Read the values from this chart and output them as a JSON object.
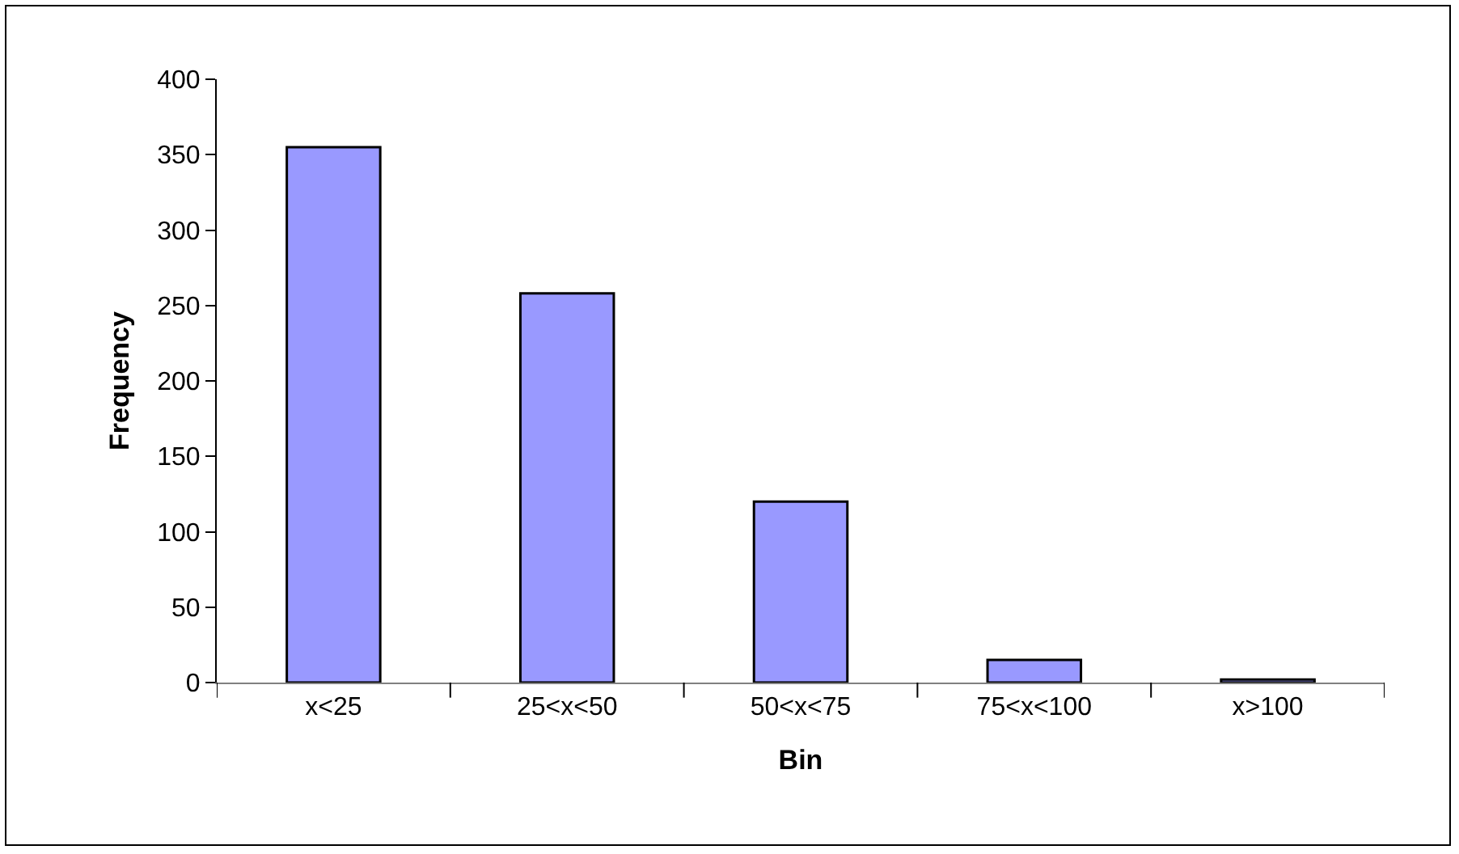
{
  "chart_data": {
    "type": "bar",
    "xlabel": "Bin",
    "ylabel": "Frequency",
    "categories": [
      "x<25",
      "25<x<50",
      "50<x<75",
      "75<x<100",
      "x>100"
    ],
    "values": [
      355,
      258,
      120,
      15,
      2
    ],
    "color": "#9999ff",
    "ylim": [
      0,
      400
    ],
    "yticks": [
      0,
      50,
      100,
      150,
      200,
      250,
      300,
      350,
      400
    ],
    "grid": false
  }
}
